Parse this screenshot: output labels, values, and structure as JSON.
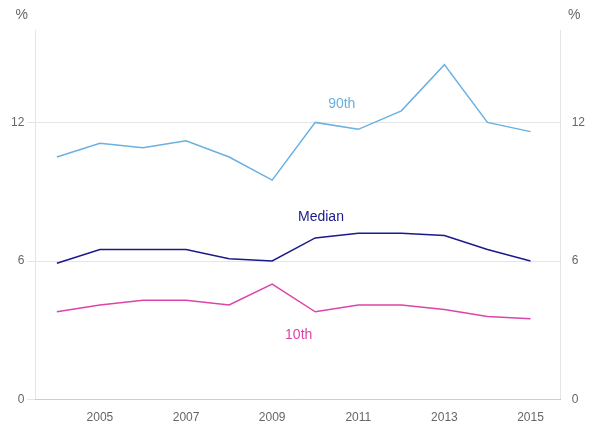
{
  "chart_data": {
    "type": "line",
    "x": [
      2004,
      2005,
      2006,
      2007,
      2008,
      2009,
      2010,
      2011,
      2012,
      2013,
      2014,
      2015
    ],
    "series": [
      {
        "color": "#6ab0e0",
        "values": [
          10.5,
          11.1,
          10.9,
          11.2,
          10.5,
          9.5,
          12.0,
          11.7,
          12.5,
          14.5,
          12.0,
          11.6
        ]
      },
      {
        "color": "#1a1a8c",
        "values": [
          5.9,
          6.5,
          6.5,
          6.5,
          6.1,
          6.0,
          7.0,
          7.2,
          7.2,
          7.1,
          6.5,
          6.0
        ]
      },
      {
        "color": "#dd44aa",
        "values": [
          3.8,
          4.1,
          4.3,
          4.3,
          4.1,
          5.0,
          3.8,
          4.1,
          4.1,
          3.9,
          3.6,
          3.5
        ]
      }
    ],
    "xlim": [
      2003.5,
      2015.7
    ],
    "xticks": [
      2005,
      2007,
      2009,
      2011,
      2013,
      2015
    ],
    "ylim": [
      0,
      16
    ],
    "yticks": [
      0,
      6,
      12
    ],
    "y2lim": [
      0,
      16
    ],
    "y2ticks": [
      0,
      6,
      12
    ],
    "ylabel": "%",
    "y2label": "%",
    "grid": "y",
    "annotations": [
      {
        "text": "90th",
        "x": 2010.3,
        "y": 12.5,
        "color": "#6ab0e0"
      },
      {
        "text": "Median",
        "x": 2009.6,
        "y": 7.6,
        "color": "#1a1a8c"
      },
      {
        "text": "10th",
        "x": 2009.3,
        "y": 2.5,
        "color": "#dd44aa"
      }
    ]
  }
}
